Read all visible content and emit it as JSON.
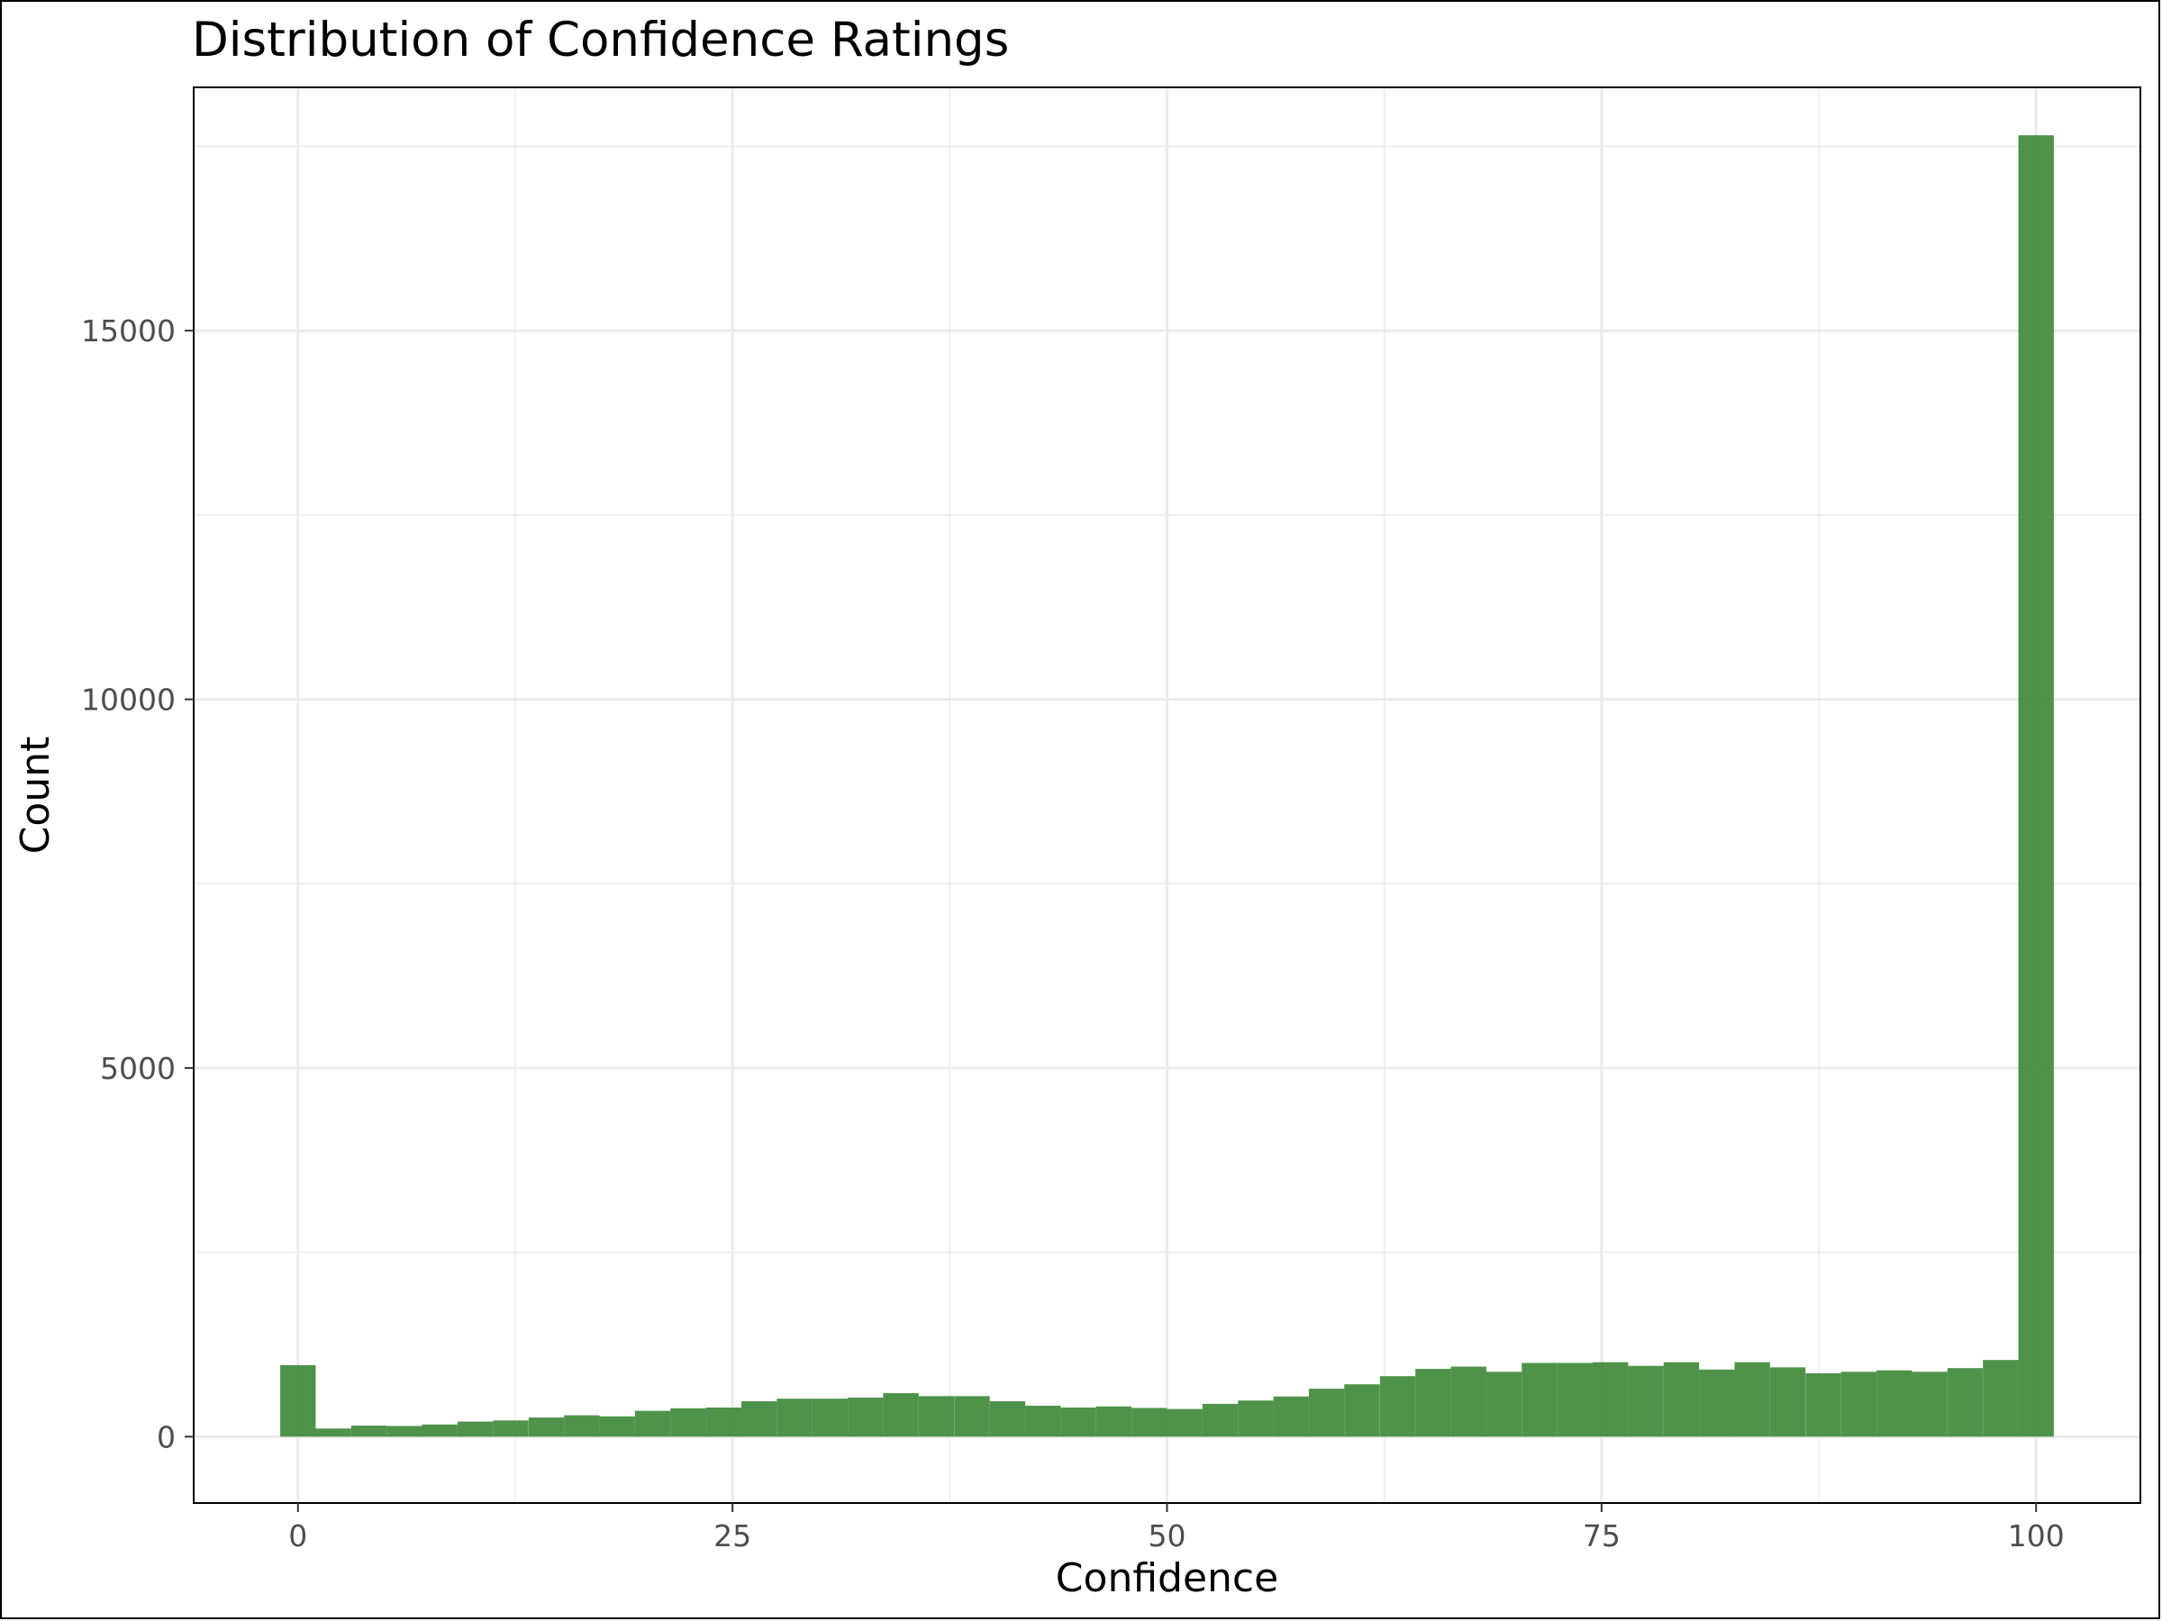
{
  "chart_data": {
    "type": "bar",
    "title": "Distribution of Confidence Ratings",
    "xlabel": "Confidence",
    "ylabel": "Count",
    "xlim": [
      -6,
      106
    ],
    "ylim": [
      -900,
      18300
    ],
    "x_ticks": [
      0,
      25,
      50,
      75,
      100
    ],
    "x_tick_labels": [
      "0",
      "25",
      "50",
      "75",
      "100"
    ],
    "y_ticks": [
      0,
      5000,
      10000,
      15000
    ],
    "y_tick_labels": [
      "0",
      "5000",
      "10000",
      "15000"
    ],
    "grid": true,
    "bar_color": "#3f8a3a",
    "bin_width": 2.04,
    "bins": [
      {
        "x": 0.0,
        "count": 970
      },
      {
        "x": 2.04,
        "count": 110
      },
      {
        "x": 4.08,
        "count": 150
      },
      {
        "x": 6.12,
        "count": 145
      },
      {
        "x": 8.16,
        "count": 165
      },
      {
        "x": 10.2,
        "count": 205
      },
      {
        "x": 12.24,
        "count": 220
      },
      {
        "x": 14.29,
        "count": 260
      },
      {
        "x": 16.33,
        "count": 290
      },
      {
        "x": 18.37,
        "count": 275
      },
      {
        "x": 20.41,
        "count": 350
      },
      {
        "x": 22.45,
        "count": 385
      },
      {
        "x": 24.49,
        "count": 395
      },
      {
        "x": 26.53,
        "count": 480
      },
      {
        "x": 28.57,
        "count": 515
      },
      {
        "x": 30.61,
        "count": 515
      },
      {
        "x": 32.65,
        "count": 530
      },
      {
        "x": 34.69,
        "count": 590
      },
      {
        "x": 36.73,
        "count": 550
      },
      {
        "x": 38.78,
        "count": 550
      },
      {
        "x": 40.82,
        "count": 480
      },
      {
        "x": 42.86,
        "count": 420
      },
      {
        "x": 44.9,
        "count": 395
      },
      {
        "x": 46.94,
        "count": 410
      },
      {
        "x": 48.98,
        "count": 390
      },
      {
        "x": 51.02,
        "count": 375
      },
      {
        "x": 53.06,
        "count": 445
      },
      {
        "x": 55.1,
        "count": 490
      },
      {
        "x": 57.14,
        "count": 545
      },
      {
        "x": 59.18,
        "count": 650
      },
      {
        "x": 61.22,
        "count": 710
      },
      {
        "x": 63.27,
        "count": 820
      },
      {
        "x": 65.31,
        "count": 920
      },
      {
        "x": 67.35,
        "count": 950
      },
      {
        "x": 69.39,
        "count": 880
      },
      {
        "x": 71.43,
        "count": 1000
      },
      {
        "x": 73.47,
        "count": 1000
      },
      {
        "x": 75.51,
        "count": 1010
      },
      {
        "x": 77.55,
        "count": 960
      },
      {
        "x": 79.59,
        "count": 1010
      },
      {
        "x": 81.63,
        "count": 910
      },
      {
        "x": 83.67,
        "count": 1010
      },
      {
        "x": 85.71,
        "count": 940
      },
      {
        "x": 87.76,
        "count": 860
      },
      {
        "x": 89.8,
        "count": 880
      },
      {
        "x": 91.84,
        "count": 900
      },
      {
        "x": 93.88,
        "count": 880
      },
      {
        "x": 95.92,
        "count": 930
      },
      {
        "x": 97.96,
        "count": 1040
      },
      {
        "x": 100.0,
        "count": 17650
      }
    ]
  }
}
